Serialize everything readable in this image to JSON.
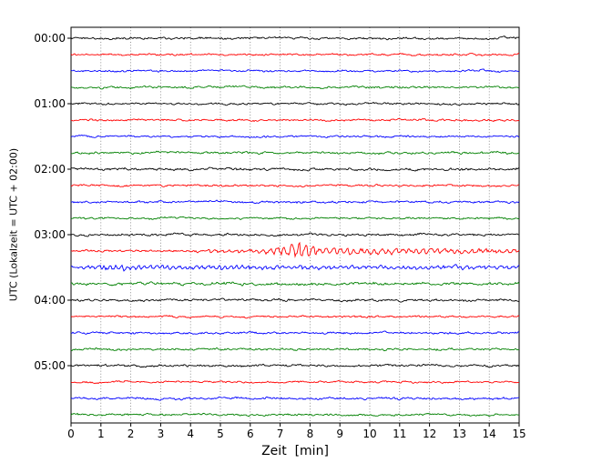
{
  "chart_data": {
    "type": "line",
    "variant": "helicorder-seismogram",
    "title": "",
    "xlabel": "Zeit  [min]",
    "ylabel": "UTC (Lokalzeit = UTC + 02:00)",
    "xlim": [
      0,
      15
    ],
    "minutes_per_row": 15,
    "x_ticks": [
      "0",
      "1",
      "2",
      "3",
      "4",
      "5",
      "6",
      "7",
      "8",
      "9",
      "10",
      "11",
      "12",
      "13",
      "14",
      "15"
    ],
    "y_tick_labels": [
      "00:00",
      "01:00",
      "02:00",
      "03:00",
      "04:00",
      "05:00"
    ],
    "grid": {
      "style": "dotted",
      "vertical": true,
      "horizontal": false,
      "color": "#666666"
    },
    "trace_color_cycle": [
      "#000000",
      "#ff0000",
      "#0000ff",
      "#008000"
    ],
    "background": "#ffffff",
    "rows": [
      {
        "start": "00:00",
        "label": "00:00",
        "color": "#000000",
        "amp": 1.3
      },
      {
        "start": "00:15",
        "label": "",
        "color": "#ff0000",
        "amp": 1.2
      },
      {
        "start": "00:30",
        "label": "",
        "color": "#0000ff",
        "amp": 1.2
      },
      {
        "start": "00:45",
        "label": "",
        "color": "#008000",
        "amp": 1.3
      },
      {
        "start": "01:00",
        "label": "01:00",
        "color": "#000000",
        "amp": 1.2
      },
      {
        "start": "01:15",
        "label": "",
        "color": "#ff0000",
        "amp": 1.3
      },
      {
        "start": "01:30",
        "label": "",
        "color": "#0000ff",
        "amp": 1.1
      },
      {
        "start": "01:45",
        "label": "",
        "color": "#008000",
        "amp": 1.4
      },
      {
        "start": "02:00",
        "label": "02:00",
        "color": "#000000",
        "amp": 1.5
      },
      {
        "start": "02:15",
        "label": "",
        "color": "#ff0000",
        "amp": 1.2
      },
      {
        "start": "02:30",
        "label": "",
        "color": "#0000ff",
        "amp": 1.4
      },
      {
        "start": "02:45",
        "label": "",
        "color": "#008000",
        "amp": 1.2
      },
      {
        "start": "03:00",
        "label": "03:00",
        "color": "#000000",
        "amp": 1.4
      },
      {
        "start": "03:15",
        "label": "",
        "color": "#ff0000",
        "amp": 1.2,
        "event": {
          "type": "seismic-event",
          "onset_min": 3.6,
          "peak_min": 7.35,
          "peak_amp": 5.0,
          "coda_amp": 2.8,
          "pre_amp": 1.3,
          "freq_cpm": 4.3
        }
      },
      {
        "start": "03:30",
        "label": "",
        "color": "#0000ff",
        "amp": 1.5,
        "event": {
          "type": "coda",
          "onset_min": 0,
          "peak_min": 1.0,
          "peak_amp": 0.8,
          "coda_amp": 1.2,
          "pre_amp": 1.2,
          "freq_cpm": 5.2
        }
      },
      {
        "start": "03:45",
        "label": "",
        "color": "#008000",
        "amp": 1.7
      },
      {
        "start": "04:00",
        "label": "04:00",
        "color": "#000000",
        "amp": 1.4
      },
      {
        "start": "04:15",
        "label": "",
        "color": "#ff0000",
        "amp": 1.2
      },
      {
        "start": "04:30",
        "label": "",
        "color": "#0000ff",
        "amp": 1.3
      },
      {
        "start": "04:45",
        "label": "",
        "color": "#008000",
        "amp": 1.3
      },
      {
        "start": "05:00",
        "label": "05:00",
        "color": "#000000",
        "amp": 1.4
      },
      {
        "start": "05:15",
        "label": "",
        "color": "#ff0000",
        "amp": 1.2
      },
      {
        "start": "05:30",
        "label": "",
        "color": "#0000ff",
        "amp": 1.4
      },
      {
        "start": "05:45",
        "label": "",
        "color": "#008000",
        "amp": 1.3
      }
    ]
  }
}
